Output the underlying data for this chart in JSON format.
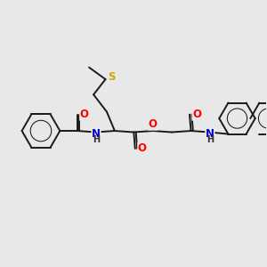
{
  "bg_color": "#e8e8e8",
  "bond_color": "#1a1a1a",
  "bond_width": 1.4,
  "atom_colors": {
    "O": "#ff0000",
    "N": "#0000cc",
    "S": "#ccaa00",
    "C": "#1a1a1a",
    "H": "#333333"
  },
  "font_size": 8.5,
  "fig_width": 3.0,
  "fig_height": 3.0,
  "dpi": 100
}
